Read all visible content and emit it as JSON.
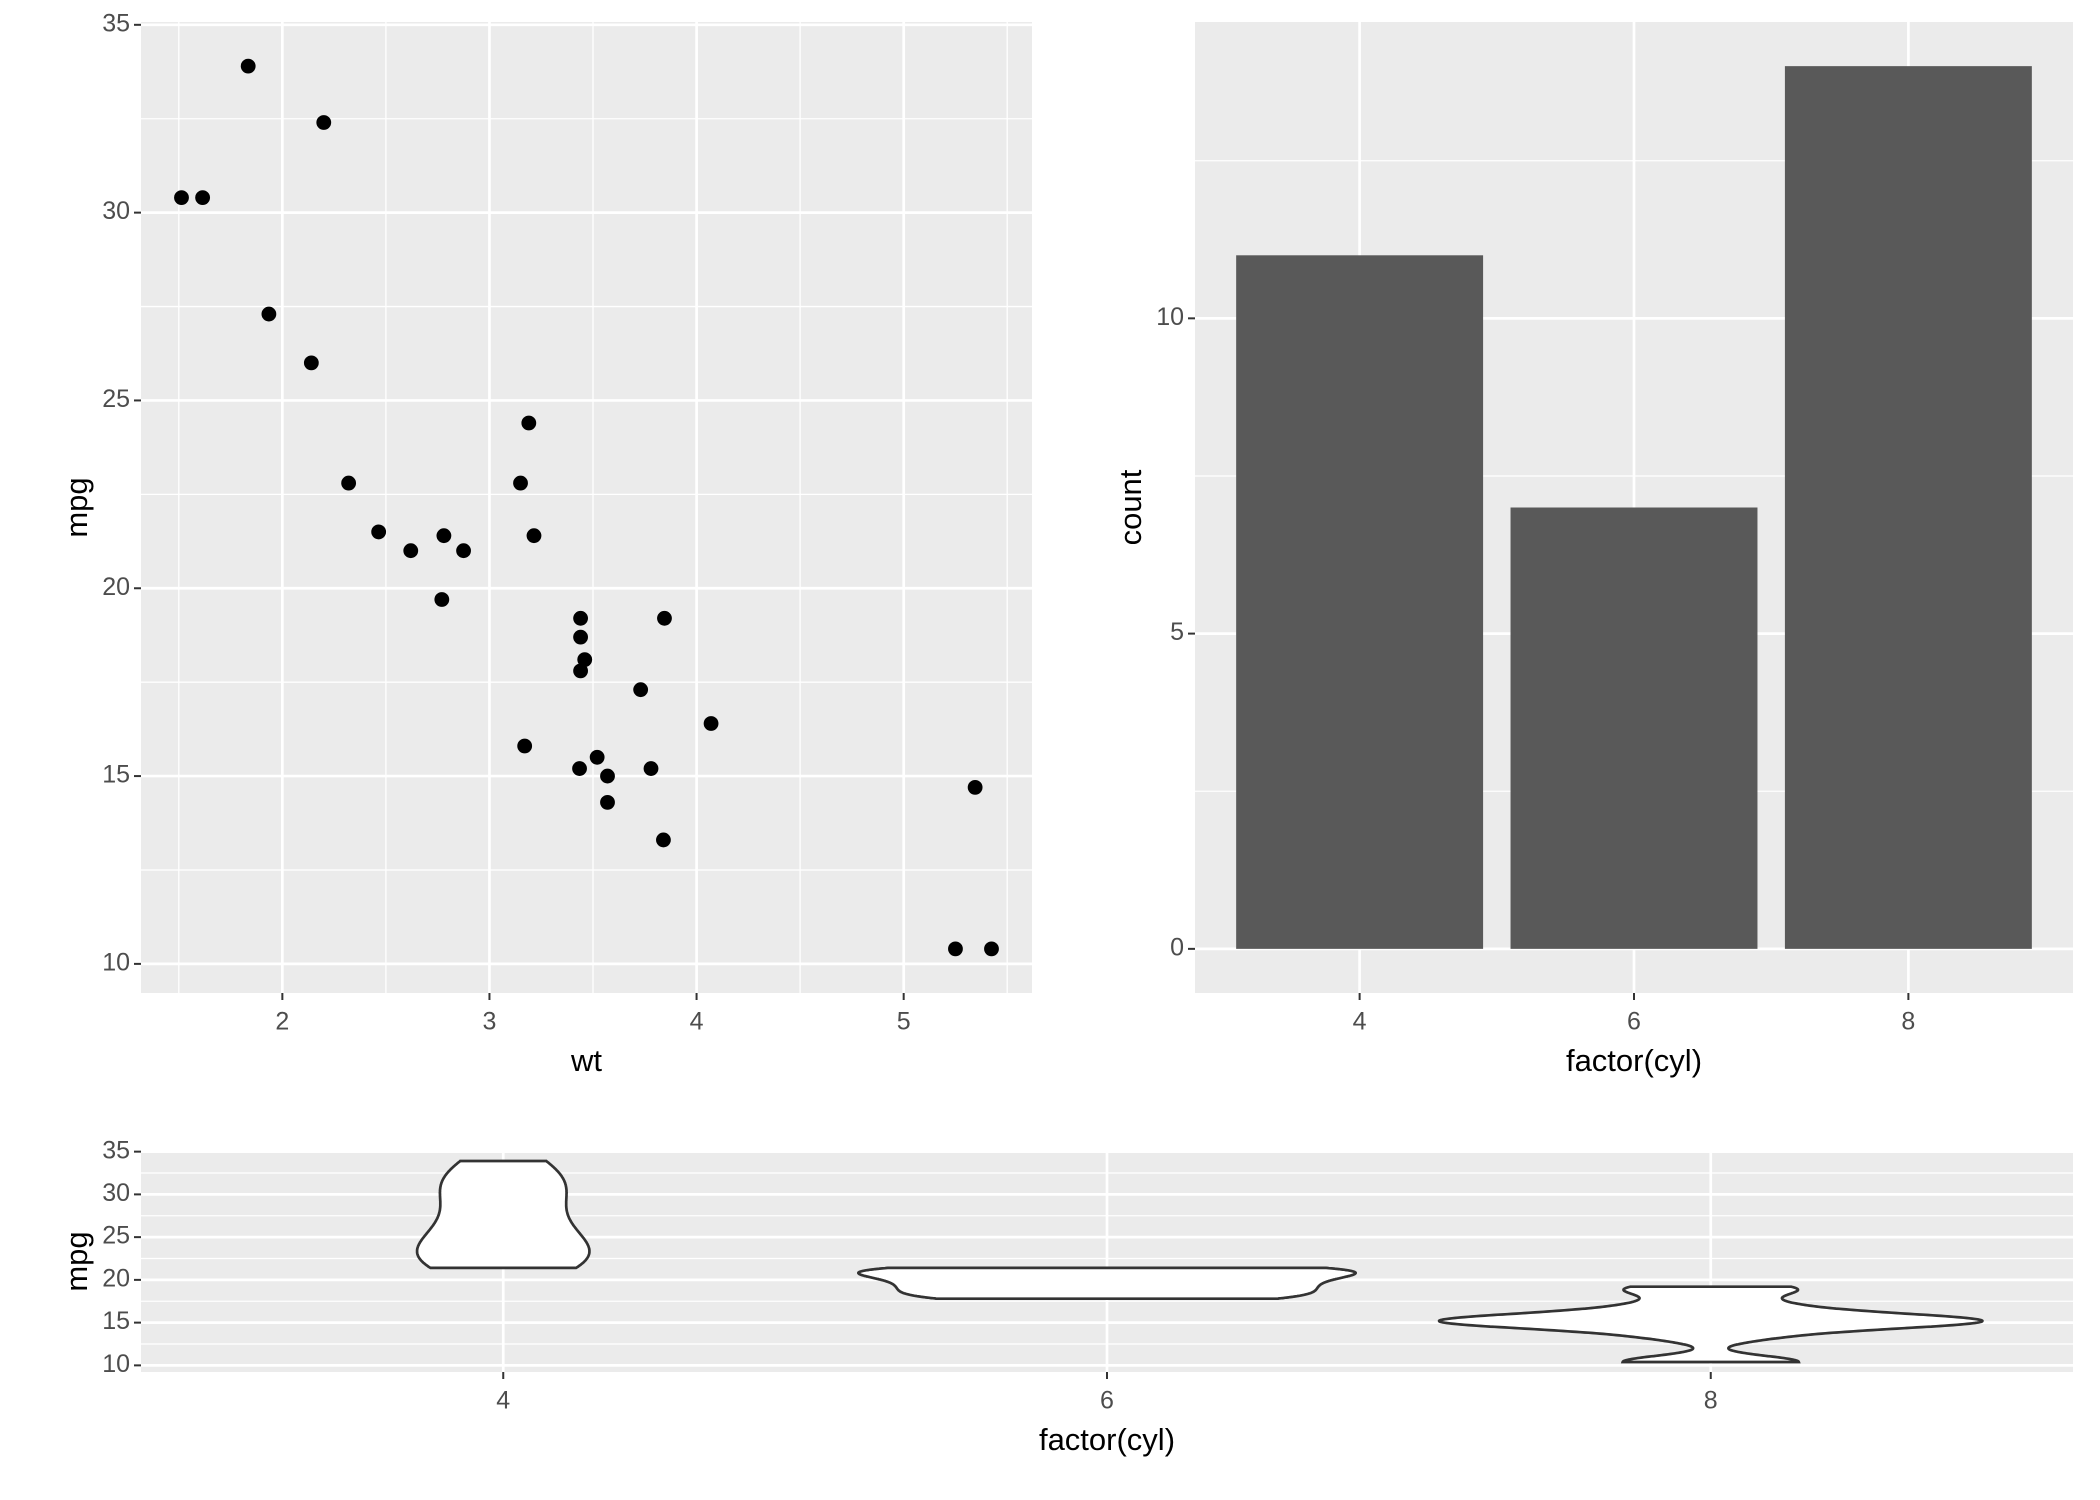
{
  "chart_data": [
    {
      "type": "scatter",
      "xlabel": "wt",
      "ylabel": "mpg",
      "color": "#000000",
      "x": [
        2.62,
        2.875,
        2.32,
        3.215,
        3.44,
        3.46,
        3.57,
        3.19,
        3.15,
        3.44,
        3.44,
        4.07,
        3.73,
        3.78,
        5.25,
        5.424,
        5.345,
        2.2,
        1.615,
        1.835,
        2.465,
        3.52,
        3.435,
        3.84,
        3.845,
        1.935,
        2.14,
        1.513,
        3.17,
        2.77,
        3.57,
        2.78
      ],
      "values": [
        21.0,
        21.0,
        22.8,
        21.4,
        18.7,
        18.1,
        14.3,
        24.4,
        22.8,
        19.2,
        17.8,
        16.4,
        17.3,
        15.2,
        10.4,
        10.4,
        14.7,
        32.4,
        30.4,
        33.9,
        21.5,
        15.5,
        15.2,
        13.3,
        19.2,
        27.3,
        26.0,
        30.4,
        15.8,
        19.7,
        15.0,
        21.4
      ],
      "xlim": [
        1.3175,
        5.6196
      ],
      "xticks": [
        2,
        3,
        4,
        5
      ],
      "minor_xticks": [
        1.5,
        2.5,
        3.5,
        4.5,
        5.5
      ],
      "ylim": [
        9.225,
        35.075
      ],
      "yticks": [
        10,
        15,
        20,
        25,
        30,
        35
      ],
      "minor_yticks": [
        12.5,
        17.5,
        22.5,
        27.5,
        32.5
      ],
      "grid": true
    },
    {
      "type": "bar",
      "xlabel": "factor(cyl)",
      "ylabel": "count",
      "color": "#595959",
      "categories": [
        "4",
        "6",
        "8"
      ],
      "values": [
        11,
        7,
        14
      ],
      "ylim": [
        -0.7,
        14.7
      ],
      "yticks": [
        0,
        5,
        10
      ],
      "minor_yticks": [
        2.5,
        7.5,
        12.5
      ],
      "grid": true
    },
    {
      "type": "violin",
      "xlabel": "factor(cyl)",
      "ylabel": "mpg",
      "color": "#ffffff",
      "edge_color": "#333333",
      "categories": [
        "4",
        "6",
        "8"
      ],
      "values": [
        [
          22.8,
          24.4,
          22.8,
          32.4,
          30.4,
          33.9,
          21.5,
          27.3,
          26.0,
          30.4,
          21.4
        ],
        [
          21.0,
          21.0,
          21.4,
          18.1,
          19.2,
          17.8,
          19.7
        ],
        [
          18.7,
          14.3,
          16.4,
          17.3,
          15.2,
          10.4,
          10.4,
          14.7,
          15.5,
          15.2,
          13.3,
          19.2,
          15.8,
          15.0
        ]
      ],
      "ylim": [
        9.225,
        35.075
      ],
      "yticks": [
        10,
        15,
        20,
        25,
        30,
        35
      ],
      "minor_yticks": [
        12.5,
        17.5,
        22.5,
        27.5,
        32.5
      ],
      "grid": true
    }
  ]
}
